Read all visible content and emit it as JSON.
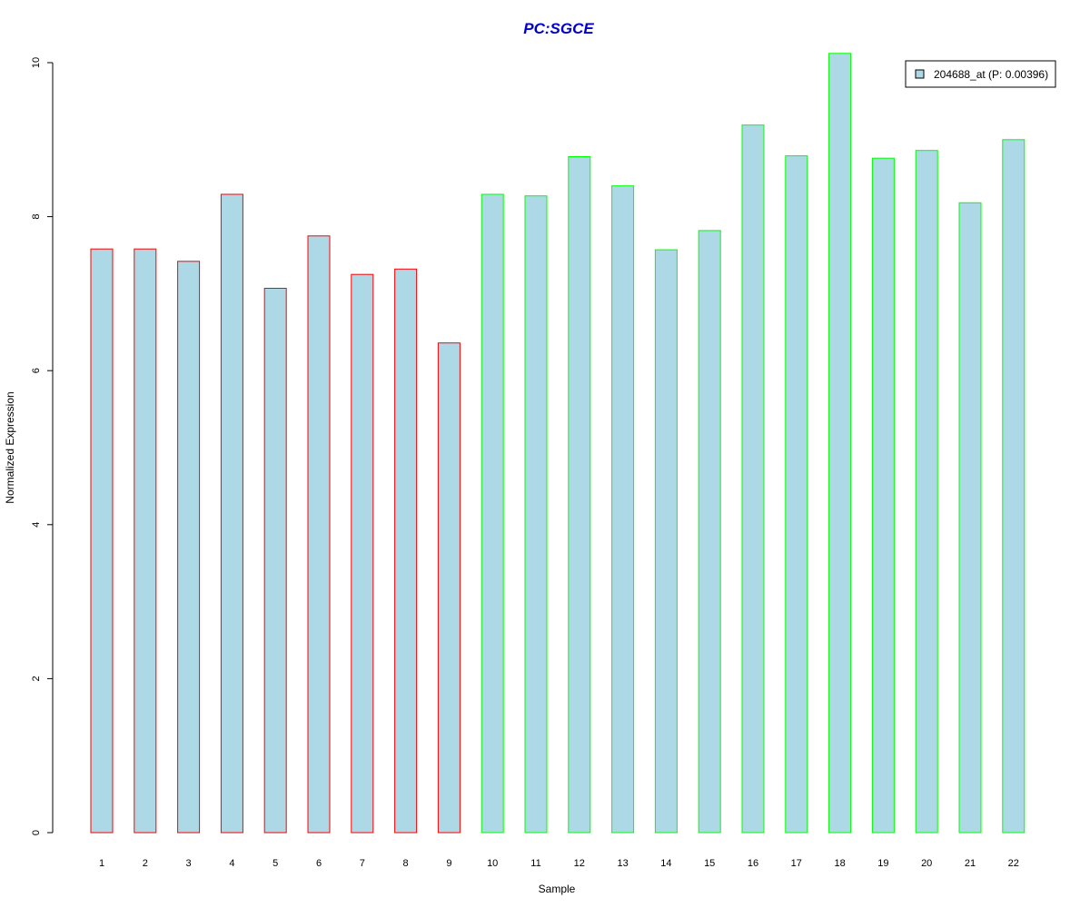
{
  "chart_data": {
    "type": "bar",
    "title": "PC:SGCE",
    "xlabel": "Sample",
    "ylabel": "Normalized Expression",
    "categories": [
      "1",
      "2",
      "3",
      "4",
      "5",
      "6",
      "7",
      "8",
      "9",
      "10",
      "11",
      "12",
      "13",
      "14",
      "15",
      "16",
      "17",
      "18",
      "19",
      "20",
      "21",
      "22"
    ],
    "series": [
      {
        "name": "204688_at (P: 0.00396)",
        "values": [
          7.58,
          7.58,
          7.42,
          8.29,
          7.07,
          7.75,
          7.25,
          7.32,
          6.36,
          8.29,
          8.27,
          8.78,
          8.4,
          7.57,
          7.82,
          9.19,
          8.79,
          10.12,
          8.76,
          8.86,
          8.18,
          9.0
        ]
      }
    ],
    "bar_groups": [
      {
        "from": 1,
        "to": 9,
        "border_color": "#ff0000"
      },
      {
        "from": 10,
        "to": 22,
        "border_color": "#00ff00"
      }
    ],
    "ylim": [
      0,
      10.2
    ],
    "yticks": [
      0,
      2,
      4,
      6,
      8,
      10
    ],
    "grid": false,
    "legend_position": "top-right",
    "colors": {
      "bar_fill": "#add8e6",
      "title": "#0000cd"
    }
  }
}
